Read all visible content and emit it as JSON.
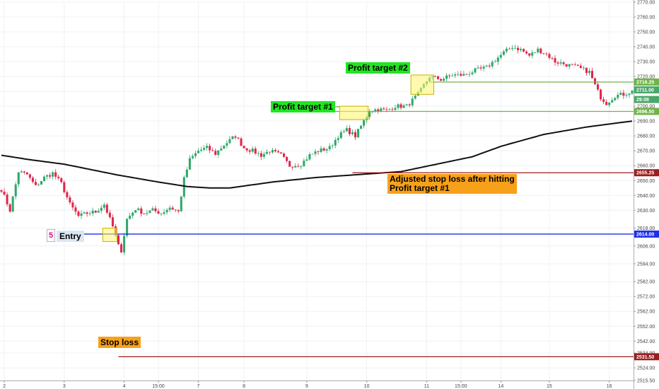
{
  "chart_data": {
    "type": "candlestick",
    "ylim": [
      2515.5,
      2770
    ],
    "grid": true,
    "y_axis_position": "right",
    "x_tick_labels": [
      {
        "label": "2",
        "bar": 1
      },
      {
        "label": "3",
        "bar": 22
      },
      {
        "label": "4",
        "bar": 43
      },
      {
        "label": "15:00",
        "bar": 55
      },
      {
        "label": "7",
        "bar": 69
      },
      {
        "label": "8",
        "bar": 85
      },
      {
        "label": "9",
        "bar": 107
      },
      {
        "label": "10",
        "bar": 128
      },
      {
        "label": "11",
        "bar": 149
      },
      {
        "label": "15:00",
        "bar": 161
      },
      {
        "label": "14",
        "bar": 175
      },
      {
        "label": "15",
        "bar": 192
      },
      {
        "label": "16",
        "bar": 213
      }
    ],
    "y_tick_labels": [
      "2770.00",
      "2760.00",
      "2750.00",
      "2740.00",
      "2730.00",
      "2720.00",
      "2710.00",
      "2700.00",
      "2690.00",
      "2680.00",
      "2670.00",
      "2660.00",
      "2650.00",
      "2640.00",
      "2630.00",
      "2618.00",
      "2606.00",
      "2594.00",
      "2582.00",
      "2572.00",
      "2562.00",
      "2552.00",
      "2542.00",
      "2534.00",
      "2524.00",
      "2515.50"
    ],
    "close_path": [
      [
        0,
        2644
      ],
      [
        3,
        2630
      ],
      [
        6,
        2656
      ],
      [
        9,
        2654
      ],
      [
        12,
        2646
      ],
      [
        15,
        2652
      ],
      [
        18,
        2655
      ],
      [
        21,
        2648
      ],
      [
        24,
        2634
      ],
      [
        27,
        2626
      ],
      [
        30,
        2628
      ],
      [
        33,
        2629
      ],
      [
        36,
        2634
      ],
      [
        39,
        2619
      ],
      [
        41,
        2606
      ],
      [
        42,
        2603
      ],
      [
        44,
        2624
      ],
      [
        47,
        2631
      ],
      [
        50,
        2628
      ],
      [
        53,
        2630
      ],
      [
        56,
        2628
      ],
      [
        59,
        2632
      ],
      [
        62,
        2629
      ],
      [
        64,
        2651
      ],
      [
        66,
        2664
      ],
      [
        69,
        2670
      ],
      [
        72,
        2672
      ],
      [
        75,
        2668
      ],
      [
        78,
        2674
      ],
      [
        82,
        2680
      ],
      [
        85,
        2672
      ],
      [
        88,
        2670
      ],
      [
        91,
        2667
      ],
      [
        94,
        2670
      ],
      [
        98,
        2667
      ],
      [
        101,
        2660
      ],
      [
        105,
        2661
      ],
      [
        108,
        2667
      ],
      [
        111,
        2670
      ],
      [
        115,
        2672
      ],
      [
        118,
        2680
      ],
      [
        121,
        2684
      ],
      [
        124,
        2680
      ],
      [
        127,
        2690
      ],
      [
        129,
        2697
      ],
      [
        132,
        2698
      ],
      [
        135,
        2697
      ],
      [
        138,
        2700
      ],
      [
        142,
        2700
      ],
      [
        146,
        2708
      ],
      [
        148,
        2714
      ],
      [
        150,
        2720
      ],
      [
        154,
        2718
      ],
      [
        158,
        2721
      ],
      [
        162,
        2721
      ],
      [
        166,
        2724
      ],
      [
        170,
        2726
      ],
      [
        173,
        2731
      ],
      [
        176,
        2736
      ],
      [
        179,
        2740
      ],
      [
        182,
        2738
      ],
      [
        185,
        2734
      ],
      [
        188,
        2738
      ],
      [
        191,
        2735
      ],
      [
        194,
        2730
      ],
      [
        198,
        2728
      ],
      [
        202,
        2726
      ],
      [
        206,
        2723
      ],
      [
        208,
        2714
      ],
      [
        210,
        2706
      ],
      [
        212,
        2702
      ],
      [
        215,
        2707
      ],
      [
        218,
        2708
      ],
      [
        221,
        2710
      ]
    ],
    "moving_average": [
      [
        0,
        2667
      ],
      [
        10,
        2664
      ],
      [
        22,
        2661
      ],
      [
        40,
        2654
      ],
      [
        55,
        2649
      ],
      [
        65,
        2646
      ],
      [
        73,
        2645
      ],
      [
        80,
        2645
      ],
      [
        95,
        2649
      ],
      [
        110,
        2652
      ],
      [
        125,
        2654
      ],
      [
        140,
        2656
      ],
      [
        150,
        2660
      ],
      [
        165,
        2666
      ],
      [
        175,
        2673
      ],
      [
        190,
        2681
      ],
      [
        205,
        2686
      ],
      [
        221,
        2690
      ]
    ],
    "horizontal_levels": [
      {
        "label": "2716.25",
        "value": 2716.25,
        "color": "#71b34a",
        "from_bar": 150
      },
      {
        "label": "2711.00",
        "value": 2711.0,
        "color": "#4aa86a",
        "from_bar": null
      },
      {
        "label": "29:08",
        "value": 2704.5,
        "color": "#4aa86a",
        "from_bar": null
      },
      {
        "label": "2696.50",
        "value": 2696.5,
        "color": "#71b34a",
        "from_bar": 113
      },
      {
        "label": "2655.25",
        "value": 2655.25,
        "color": "#9b1d1d",
        "from_bar": 123
      },
      {
        "label": "2614.00",
        "value": 2614.0,
        "color": "#1c2ee6",
        "from_bar": 29
      },
      {
        "label": "2531.50",
        "value": 2531.5,
        "color": "#9b1d1d",
        "from_bar": 41
      }
    ],
    "highlight_boxes": [
      {
        "from_bar": 144,
        "to_bar": 151,
        "low": 2708,
        "high": 2721
      },
      {
        "from_bar": 119,
        "to_bar": 128,
        "low": 2691,
        "high": 2700
      },
      {
        "from_bar": 36,
        "to_bar": 40,
        "low": 2609,
        "high": 2618
      }
    ],
    "annotations": {
      "profit_target_1": "Profit target #1",
      "profit_target_2": "Profit target #2",
      "adjusted_stop_line1": "Adjusted stop loss after hitting",
      "adjusted_stop_line2": "Profit target #1",
      "entry_badge": "5",
      "entry": "Entry",
      "stop_loss": "Stop loss"
    },
    "colors": {
      "up": "#2fa86a",
      "down": "#e0264a",
      "ma": "#111111",
      "grid": "#eef1f5",
      "highlight_fill": "#fff56b",
      "highlight_stroke": "#c8b400"
    }
  }
}
